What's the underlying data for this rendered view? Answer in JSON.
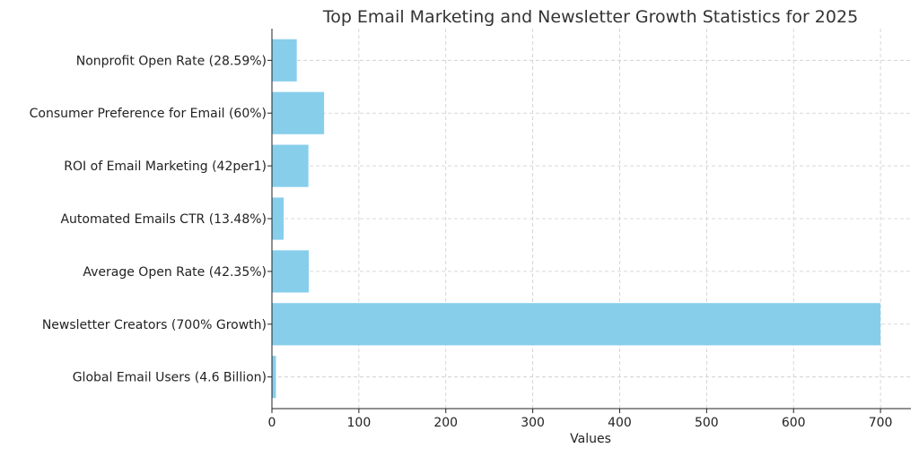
{
  "chart_data": {
    "type": "bar",
    "orientation": "horizontal",
    "title": "Top Email Marketing and Newsletter Growth Statistics for 2025",
    "xlabel": "Values",
    "ylabel": "",
    "categories": [
      "Global Email Users (4.6 Billion)",
      "Newsletter Creators (700% Growth)",
      "Average Open Rate (42.35%)",
      "Automated Emails CTR (13.48%)",
      "ROI of Email Marketing (42per1)",
      "Consumer Preference for Email (60%)",
      "Nonprofit Open Rate (28.59%)"
    ],
    "values": [
      4.6,
      700,
      42.35,
      13.48,
      42,
      60,
      28.59
    ],
    "xlim": [
      0,
      735
    ],
    "xticks": [
      "0",
      "100",
      "200",
      "300",
      "400",
      "500",
      "600",
      "700"
    ],
    "grid": true,
    "bar_color": "#87ceeb"
  }
}
